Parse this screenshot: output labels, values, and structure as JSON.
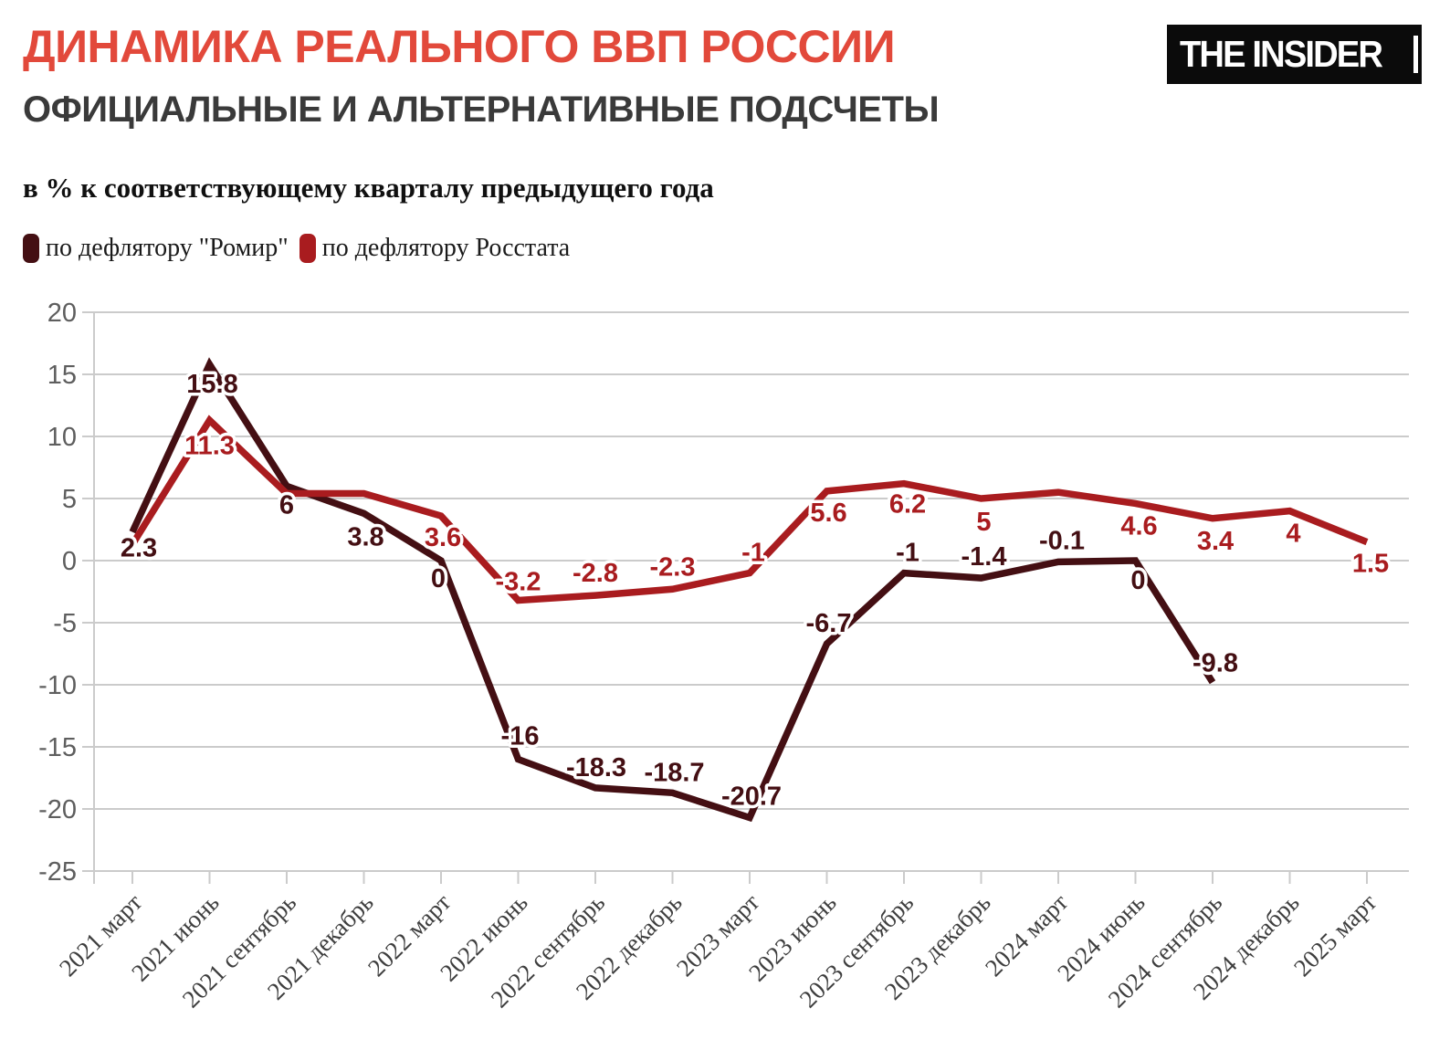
{
  "header": {
    "logo_text": "THE INSIDER"
  },
  "chart_data": {
    "type": "line",
    "title": "ДИНАМИКА РЕАЛЬНОГО ВВП РОССИИ",
    "subtitle": "ОФИЦИАЛЬНЫЕ И АЛЬТЕРНАТИВНЫЕ ПОДСЧЕТЫ",
    "unit_label": "в % к соответствующему кварталу предыдущего года",
    "title_color": "#E2493B",
    "grid": true,
    "legend_position": "top-left",
    "x_labels_rotation_deg": -45,
    "categories": [
      "2021 март",
      "2021 июнь",
      "2021 сентябрь",
      "2021 декабрь",
      "2022 март",
      "2022 июнь",
      "2022 сентябрь",
      "2022 декабрь",
      "2023 март",
      "2023 июнь",
      "2023 сентябрь",
      "2023 декабрь",
      "2024 март",
      "2024 июнь",
      "2024 сентябрь",
      "2024 декабрь",
      "2025 март"
    ],
    "series": [
      {
        "name": "по дефлятору \"Ромир\"",
        "color": "#440F13",
        "values": [
          2.3,
          15.8,
          6,
          3.8,
          0,
          -16,
          -18.3,
          -18.7,
          -20.7,
          -6.7,
          -1,
          -1.4,
          -0.1,
          0,
          -9.8,
          null,
          null
        ],
        "point_labels": [
          "2.3",
          "15.8",
          "6",
          "3.8",
          "0",
          "-16",
          "-18.3",
          "-18.7",
          "-20.7",
          "-6.7",
          "-1",
          "-1.4",
          "-0.1",
          "0",
          "-9.8",
          "",
          ""
        ]
      },
      {
        "name": "по дефлятору Росстата",
        "color": "#A91C1F",
        "values": [
          1.3,
          11.3,
          5.4,
          5.4,
          3.6,
          -3.2,
          -2.8,
          -2.3,
          -1,
          5.6,
          6.2,
          5,
          5.5,
          4.6,
          3.4,
          4,
          1.5
        ],
        "point_labels": [
          "",
          "11.3",
          "",
          "",
          "3.6",
          "-3.2",
          "-2.8",
          "-2.3",
          "-1",
          "5.6",
          "6.2",
          "5",
          "",
          "4.6",
          "3.4",
          "4",
          "1.5"
        ]
      }
    ],
    "ylim": [
      -25,
      20
    ],
    "yticks": [
      20,
      15,
      10,
      5,
      0,
      -5,
      -10,
      -15,
      -20,
      -25
    ]
  }
}
